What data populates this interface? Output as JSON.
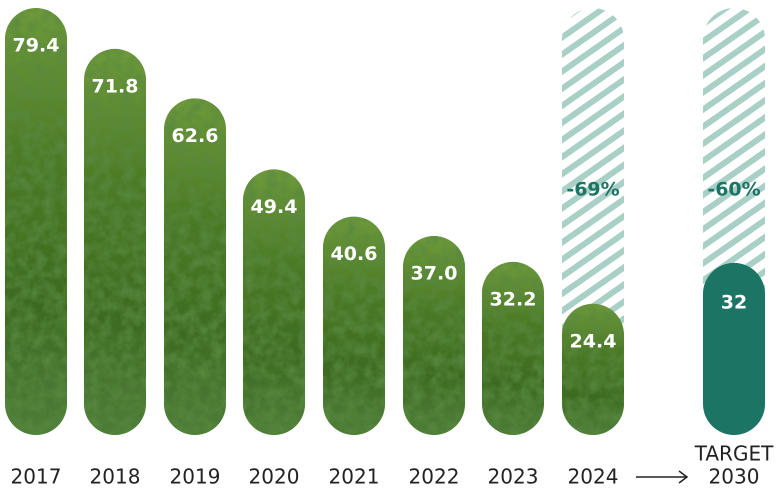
{
  "chart_data": {
    "type": "bar",
    "categories": [
      "2017",
      "2018",
      "2019",
      "2020",
      "2021",
      "2022",
      "2023",
      "2024",
      "2030"
    ],
    "values": [
      79.4,
      71.8,
      62.6,
      49.4,
      40.6,
      37.0,
      32.2,
      24.4,
      32
    ],
    "value_labels": [
      "79.4",
      "71.8",
      "62.6",
      "49.4",
      "40.6",
      "37.0",
      "32.2",
      "24.4",
      "32"
    ],
    "color": "#4f7f2c",
    "target_color": "#1b7464",
    "target_label": "TARGET",
    "hatch_color": "#a8d0c6",
    "annotations": [
      {
        "x": "2024",
        "text": "-69%"
      },
      {
        "x": "2030",
        "text": "-60%"
      }
    ]
  }
}
